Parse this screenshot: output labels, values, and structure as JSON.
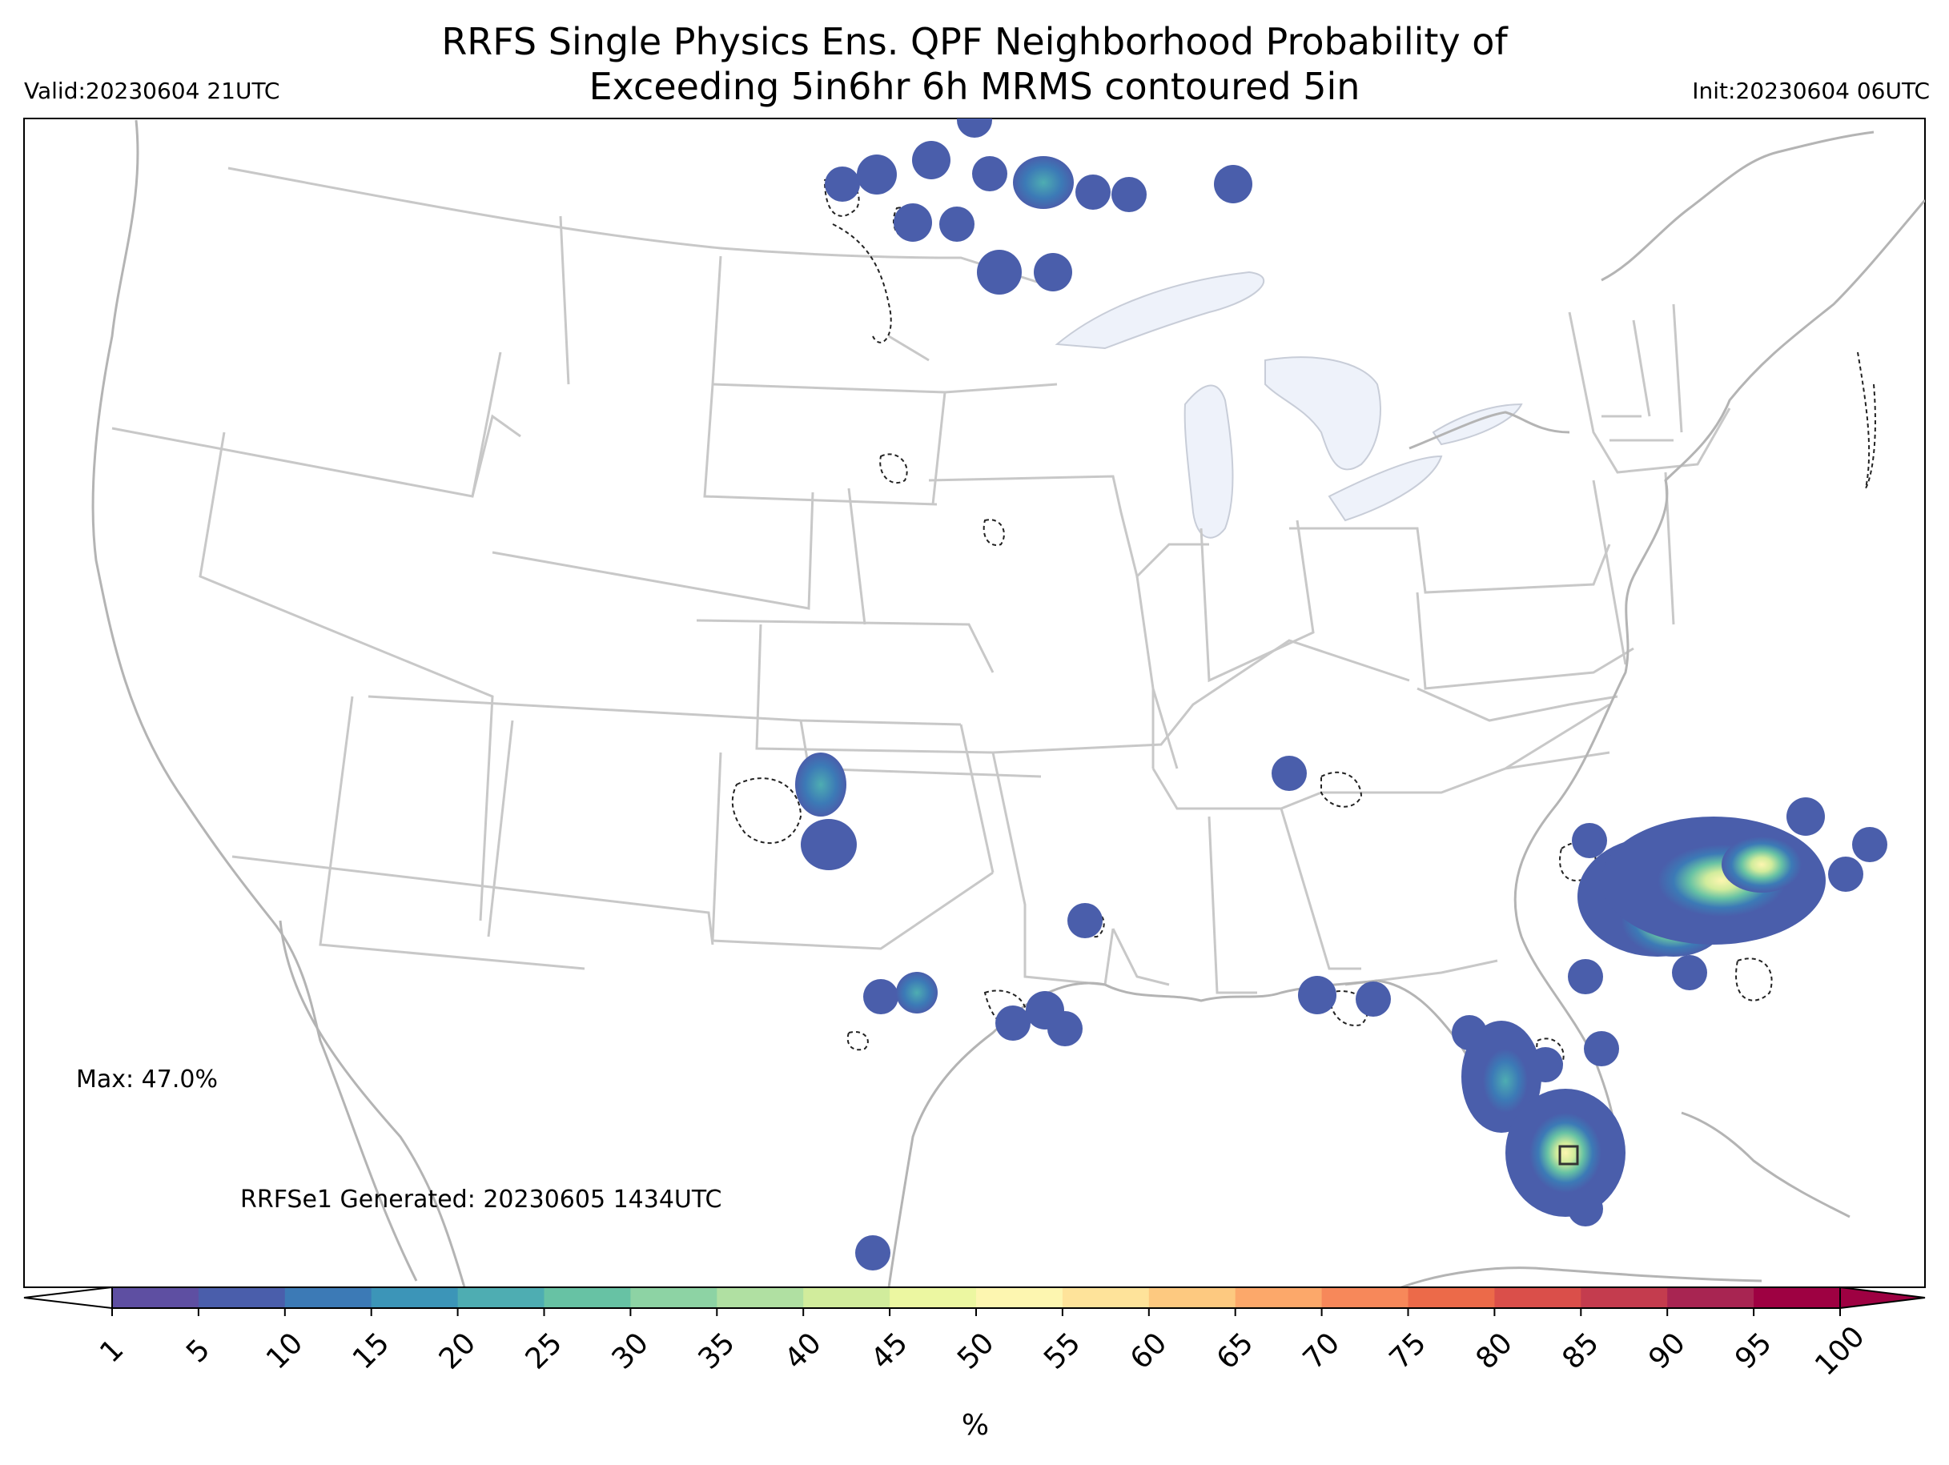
{
  "header": {
    "title_line1": "RRFS Single Physics Ens. QPF Neighborhood Probability of",
    "title_line2": "Exceeding 5in6hr 6h MRMS contoured 5in",
    "valid": "Valid:20230604 21UTC",
    "init": "Init:20230604 06UTC"
  },
  "annotations": {
    "max": "Max: 47.0%",
    "generated": "RRFSe1 Generated: 20230605 1434UTC"
  },
  "colorbar": {
    "unit": "%",
    "levels": [
      "1",
      "5",
      "10",
      "15",
      "20",
      "25",
      "30",
      "35",
      "40",
      "45",
      "50",
      "55",
      "60",
      "65",
      "70",
      "75",
      "80",
      "85",
      "90",
      "95",
      "100"
    ],
    "colors": [
      "#5e4fa2",
      "#4a5eab",
      "#3c7ab6",
      "#3c95b8",
      "#4eadb2",
      "#67c2a4",
      "#8dd3a4",
      "#b0e0a2",
      "#d1ec9c",
      "#ecf7a1",
      "#fdf6b0",
      "#fee39a",
      "#fdc980",
      "#fca86a",
      "#f7885a",
      "#ec6a49",
      "#da4f4a",
      "#c43c4e",
      "#a82552",
      "#9e0142"
    ],
    "under_color": "#ffffff",
    "over_color": "#9e0142"
  },
  "map_style": {
    "boundary_color": "#c8c8c8",
    "coast_color": "#b4b4b4",
    "lake_color": "#eef2fa",
    "contour_color": "#222222"
  }
}
